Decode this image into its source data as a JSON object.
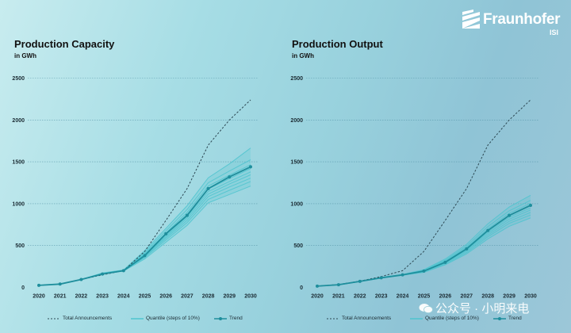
{
  "logo": {
    "name": "Fraunhofer",
    "sub": "ISI"
  },
  "watermark": {
    "text": "公众号 · 小明来电"
  },
  "colors": {
    "trend": "#1e8e9c",
    "quantile": "#4fc4cf",
    "announcements": "#2e4a55",
    "gridline": "#4f8fa3"
  },
  "chart_data": [
    {
      "type": "line",
      "title": "Production Capacity",
      "subtitle": "in GWh",
      "x": [
        2020,
        2021,
        2022,
        2023,
        2024,
        2025,
        2026,
        2027,
        2028,
        2029,
        2030
      ],
      "ylim": [
        0,
        2500
      ],
      "yticks": [
        0,
        500,
        1000,
        1500,
        2000,
        2500
      ],
      "grid": true,
      "legend": "bottom",
      "series": [
        {
          "name": "Total Announcements",
          "style": "dashed",
          "values": [
            25,
            40,
            95,
            150,
            200,
            430,
            800,
            1180,
            1700,
            2000,
            2240
          ]
        },
        {
          "name": "Quantile (steps of 10%)",
          "style": "band",
          "values": [
            [
              25,
              40,
              95,
              160,
              195,
              340,
              540,
              740,
              1010,
              1110,
              1210
            ],
            [
              25,
              40,
              95,
              162,
              198,
              355,
              565,
              775,
              1050,
              1160,
              1265
            ],
            [
              25,
              40,
              95,
              164,
              200,
              365,
              585,
              800,
              1085,
              1200,
              1305
            ],
            [
              25,
              40,
              95,
              165,
              201,
              375,
              600,
              825,
              1115,
              1235,
              1345
            ],
            [
              25,
              40,
              95,
              166,
              202,
              385,
              615,
              845,
              1145,
              1265,
              1380
            ],
            [
              25,
              40,
              95,
              167,
              203,
              395,
              630,
              870,
              1175,
              1300,
              1420
            ],
            [
              25,
              40,
              95,
              168,
              204,
              405,
              650,
              895,
              1210,
              1340,
              1465
            ],
            [
              25,
              40,
              95,
              170,
              206,
              420,
              675,
              930,
              1250,
              1390,
              1525
            ],
            [
              25,
              40,
              95,
              172,
              208,
              440,
              705,
              975,
              1310,
              1475,
              1665
            ]
          ]
        },
        {
          "name": "Trend",
          "style": "line-markers",
          "values": [
            25,
            40,
            95,
            160,
            200,
            380,
            640,
            860,
            1180,
            1320,
            1440
          ]
        }
      ]
    },
    {
      "type": "line",
      "title": "Production Output",
      "subtitle": "in GWh",
      "x": [
        2020,
        2021,
        2022,
        2023,
        2024,
        2025,
        2026,
        2027,
        2028,
        2029,
        2030
      ],
      "ylim": [
        0,
        2500
      ],
      "yticks": [
        0,
        500,
        1000,
        1500,
        2000,
        2500
      ],
      "grid": true,
      "legend": "bottom",
      "series": [
        {
          "name": "Total Announcements",
          "style": "dashed",
          "values": [
            15,
            35,
            75,
            130,
            200,
            430,
            800,
            1180,
            1700,
            2000,
            2240
          ]
        },
        {
          "name": "Quantile (steps of 10%)",
          "style": "band",
          "values": [
            [
              15,
              30,
              70,
              110,
              145,
              180,
              270,
              400,
              580,
              730,
              830
            ],
            [
              15,
              30,
              70,
              112,
              147,
              185,
              280,
              415,
              605,
              765,
              865
            ],
            [
              15,
              31,
              71,
              113,
              148,
              190,
              290,
              430,
              625,
              790,
              895
            ],
            [
              15,
              31,
              71,
              114,
              149,
              193,
              297,
              442,
              645,
              815,
              925
            ],
            [
              15,
              31,
              72,
              115,
              150,
              196,
              303,
              453,
              662,
              838,
              950
            ],
            [
              15,
              32,
              72,
              116,
              151,
              199,
              310,
              465,
              680,
              860,
              975
            ],
            [
              15,
              32,
              73,
              117,
              152,
              202,
              318,
              478,
              700,
              885,
              1005
            ],
            [
              15,
              33,
              73,
              118,
              153,
              206,
              327,
              493,
              725,
              915,
              1040
            ],
            [
              15,
              33,
              74,
              119,
              155,
              212,
              340,
              515,
              760,
              960,
              1100
            ]
          ]
        },
        {
          "name": "Trend",
          "style": "line-markers",
          "values": [
            15,
            32,
            72,
            115,
            150,
            195,
            300,
            460,
            680,
            860,
            980
          ]
        }
      ]
    }
  ]
}
